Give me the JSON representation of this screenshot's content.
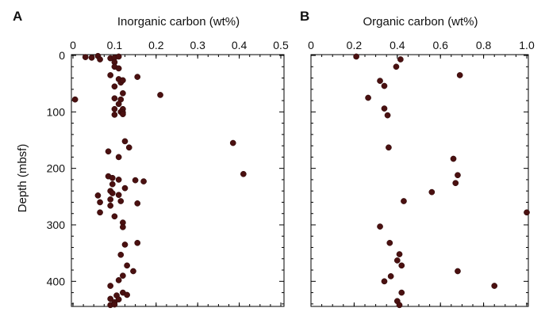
{
  "chart_data": [
    {
      "type": "scatter",
      "panel_label": "A",
      "title": "Inorganic carbon (wt%)",
      "xlabel": "Inorganic carbon (wt%)",
      "ylabel": "Depth (mbsf)",
      "xlim": [
        0,
        0.5
      ],
      "ylim": [
        0,
        450
      ],
      "y_inverted": true,
      "x_axis_position": "top",
      "xticks": [
        "0",
        "0.1",
        "0.2",
        "0.3",
        "0.4",
        "0.5"
      ],
      "xtick_values": [
        0,
        0.1,
        0.2,
        0.3,
        0.4,
        0.5
      ],
      "yticks": [
        "0",
        "100",
        "200",
        "300",
        "400"
      ],
      "ytick_values": [
        0,
        100,
        200,
        300,
        400
      ],
      "points": [
        {
          "x": 0.03,
          "y": 3
        },
        {
          "x": 0.045,
          "y": 4
        },
        {
          "x": 0.06,
          "y": 1
        },
        {
          "x": 0.065,
          "y": 7
        },
        {
          "x": 0.09,
          "y": 5
        },
        {
          "x": 0.1,
          "y": 4
        },
        {
          "x": 0.11,
          "y": 2
        },
        {
          "x": 0.1,
          "y": 12
        },
        {
          "x": 0.1,
          "y": 20
        },
        {
          "x": 0.11,
          "y": 23
        },
        {
          "x": 0.09,
          "y": 35
        },
        {
          "x": 0.155,
          "y": 38
        },
        {
          "x": 0.11,
          "y": 42
        },
        {
          "x": 0.115,
          "y": 48
        },
        {
          "x": 0.12,
          "y": 44
        },
        {
          "x": 0.1,
          "y": 55
        },
        {
          "x": 0.21,
          "y": 70
        },
        {
          "x": 0.12,
          "y": 67
        },
        {
          "x": 0.005,
          "y": 78
        },
        {
          "x": 0.1,
          "y": 76
        },
        {
          "x": 0.115,
          "y": 78
        },
        {
          "x": 0.11,
          "y": 86
        },
        {
          "x": 0.1,
          "y": 95
        },
        {
          "x": 0.12,
          "y": 95
        },
        {
          "x": 0.115,
          "y": 100
        },
        {
          "x": 0.12,
          "y": 101
        },
        {
          "x": 0.1,
          "y": 105
        },
        {
          "x": 0.12,
          "y": 104
        },
        {
          "x": 0.385,
          "y": 155
        },
        {
          "x": 0.125,
          "y": 152
        },
        {
          "x": 0.135,
          "y": 163
        },
        {
          "x": 0.085,
          "y": 170
        },
        {
          "x": 0.11,
          "y": 180
        },
        {
          "x": 0.41,
          "y": 210
        },
        {
          "x": 0.085,
          "y": 214
        },
        {
          "x": 0.095,
          "y": 217
        },
        {
          "x": 0.11,
          "y": 220
        },
        {
          "x": 0.15,
          "y": 221
        },
        {
          "x": 0.17,
          "y": 223
        },
        {
          "x": 0.095,
          "y": 228
        },
        {
          "x": 0.125,
          "y": 235
        },
        {
          "x": 0.09,
          "y": 240
        },
        {
          "x": 0.095,
          "y": 244
        },
        {
          "x": 0.06,
          "y": 248
        },
        {
          "x": 0.11,
          "y": 247
        },
        {
          "x": 0.09,
          "y": 255
        },
        {
          "x": 0.065,
          "y": 260
        },
        {
          "x": 0.115,
          "y": 258
        },
        {
          "x": 0.155,
          "y": 262
        },
        {
          "x": 0.09,
          "y": 266
        },
        {
          "x": 0.065,
          "y": 278
        },
        {
          "x": 0.1,
          "y": 285
        },
        {
          "x": 0.12,
          "y": 296
        },
        {
          "x": 0.12,
          "y": 304
        },
        {
          "x": 0.155,
          "y": 332
        },
        {
          "x": 0.125,
          "y": 335
        },
        {
          "x": 0.115,
          "y": 353
        },
        {
          "x": 0.13,
          "y": 372
        },
        {
          "x": 0.145,
          "y": 382
        },
        {
          "x": 0.12,
          "y": 390
        },
        {
          "x": 0.11,
          "y": 398
        },
        {
          "x": 0.09,
          "y": 408
        },
        {
          "x": 0.12,
          "y": 420
        },
        {
          "x": 0.105,
          "y": 425
        },
        {
          "x": 0.13,
          "y": 424
        },
        {
          "x": 0.09,
          "y": 431
        },
        {
          "x": 0.11,
          "y": 432
        },
        {
          "x": 0.1,
          "y": 437
        },
        {
          "x": 0.09,
          "y": 442
        },
        {
          "x": 0.1,
          "y": 441
        }
      ]
    },
    {
      "type": "scatter",
      "panel_label": "B",
      "title": "Organic carbon (wt%)",
      "xlabel": "Organic carbon (wt%)",
      "ylabel": "",
      "xlim": [
        0,
        1.0
      ],
      "ylim": [
        0,
        450
      ],
      "y_inverted": true,
      "x_axis_position": "top",
      "xticks": [
        "0",
        "0.2",
        "0.4",
        "0.6",
        "0.8",
        "1.0"
      ],
      "xtick_values": [
        0,
        0.2,
        0.4,
        0.6,
        0.8,
        1.0
      ],
      "yticks": [],
      "points": [
        {
          "x": 0.21,
          "y": 2
        },
        {
          "x": 0.415,
          "y": 7
        },
        {
          "x": 0.395,
          "y": 20
        },
        {
          "x": 0.69,
          "y": 35
        },
        {
          "x": 0.32,
          "y": 45
        },
        {
          "x": 0.34,
          "y": 54
        },
        {
          "x": 0.265,
          "y": 75
        },
        {
          "x": 0.34,
          "y": 94
        },
        {
          "x": 0.355,
          "y": 106
        },
        {
          "x": 0.36,
          "y": 163
        },
        {
          "x": 0.66,
          "y": 183
        },
        {
          "x": 0.68,
          "y": 212
        },
        {
          "x": 0.67,
          "y": 226
        },
        {
          "x": 0.56,
          "y": 242
        },
        {
          "x": 0.43,
          "y": 258
        },
        {
          "x": 1.0,
          "y": 278
        },
        {
          "x": 0.32,
          "y": 303
        },
        {
          "x": 0.365,
          "y": 332
        },
        {
          "x": 0.41,
          "y": 352
        },
        {
          "x": 0.4,
          "y": 363
        },
        {
          "x": 0.42,
          "y": 372
        },
        {
          "x": 0.68,
          "y": 382
        },
        {
          "x": 0.37,
          "y": 391
        },
        {
          "x": 0.34,
          "y": 400
        },
        {
          "x": 0.85,
          "y": 408
        },
        {
          "x": 0.42,
          "y": 420
        },
        {
          "x": 0.4,
          "y": 435
        },
        {
          "x": 0.41,
          "y": 442
        }
      ]
    }
  ],
  "colors": {
    "point": "#4a1010",
    "axis": "#000000",
    "background": "#ffffff"
  }
}
